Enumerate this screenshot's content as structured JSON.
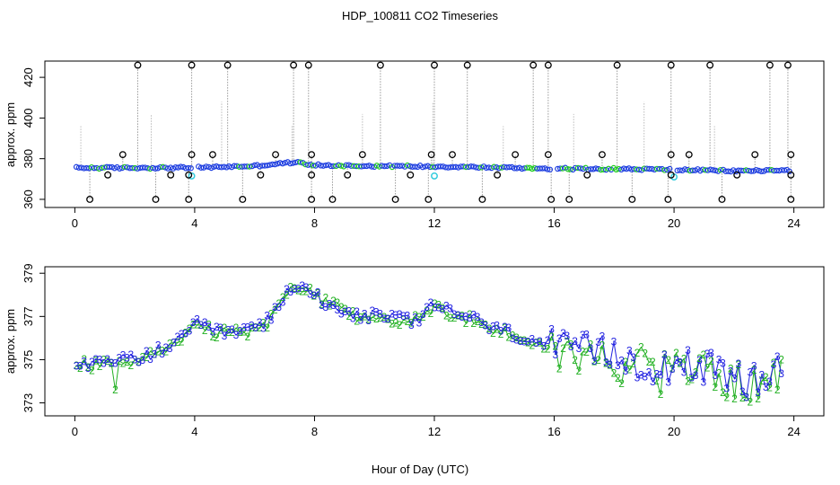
{
  "title": "HDP_100811  CO2 Timeseries",
  "xlabel": "Hour of Day (UTC)",
  "colors": {
    "outlier_circle": "#000000",
    "primary_circle": "#1f3fe0",
    "secondary_circle": "#22cc22",
    "cyan_circle": "#33ccdd",
    "spike_line": "#999999",
    "series_3": "#1f1fe0",
    "series_2": "#22b022"
  },
  "chart_data": [
    {
      "type": "scatter",
      "ylabel": "approx. ppm",
      "xlim": [
        -1.0,
        25.0
      ],
      "ylim": [
        356.0,
        428.0
      ],
      "xticks": [
        0,
        4,
        8,
        12,
        16,
        20,
        24
      ],
      "xtick_labels": [
        "0",
        "4",
        "8",
        "12",
        "16",
        "20",
        "24"
      ],
      "yticks": [
        360,
        380,
        400,
        420
      ],
      "ytick_labels": [
        "360",
        "380",
        "400",
        "420"
      ],
      "baseline": [
        [
          0,
          375.5
        ],
        [
          2,
          375.5
        ],
        [
          4,
          375.6
        ],
        [
          6,
          376.4
        ],
        [
          7.3,
          378.2
        ],
        [
          7.6,
          377.8
        ],
        [
          8,
          376.8
        ],
        [
          10,
          376.4
        ],
        [
          12,
          376.2
        ],
        [
          14,
          375.7
        ],
        [
          16,
          375.1
        ],
        [
          18,
          375.0
        ],
        [
          20,
          374.6
        ],
        [
          22,
          374.0
        ],
        [
          24,
          374.3
        ]
      ],
      "outliers_high": [
        2.1,
        3.9,
        5.1,
        7.3,
        7.8,
        10.2,
        12.0,
        13.1,
        15.3,
        15.8,
        18.1,
        19.9,
        21.2,
        23.2,
        23.8
      ],
      "outliers_high_value": 426.0,
      "outliers_mid": [
        1.6,
        3.9,
        4.6,
        6.7,
        7.9,
        9.6,
        11.9,
        12.6,
        14.7,
        15.8,
        17.6,
        19.9,
        20.5,
        22.7,
        23.9
      ],
      "outliers_mid_value": 382.0,
      "outliers_low": [
        0.5,
        2.7,
        3.8,
        5.6,
        7.9,
        8.6,
        10.7,
        11.8,
        13.6,
        15.9,
        16.5,
        18.6,
        19.8,
        21.6,
        23.9
      ],
      "outliers_low_value": 360.0,
      "outliers_below": [
        1.1,
        3.2,
        3.8,
        6.2,
        7.9,
        9.1,
        11.2,
        14.1,
        17.1,
        19.9,
        22.1,
        23.9
      ],
      "outliers_below_value": 372.0,
      "cyan_points": [
        [
          3.9,
          371.5
        ],
        [
          12.0,
          371.5
        ],
        [
          20.0,
          371.0
        ]
      ],
      "gap_hours": [
        4.0,
        16.0,
        20.0
      ]
    },
    {
      "type": "line",
      "ylabel": "approx. ppm",
      "xlim": [
        -1.0,
        25.0
      ],
      "ylim": [
        372.4,
        379.3
      ],
      "xticks": [
        0,
        4,
        8,
        12,
        16,
        20,
        24
      ],
      "xtick_labels": [
        "0",
        "4",
        "8",
        "12",
        "16",
        "20",
        "24"
      ],
      "yticks": [
        373,
        375,
        377,
        379
      ],
      "ytick_labels": [
        "373",
        "375",
        "377",
        "379"
      ],
      "baseline": [
        [
          0,
          374.9
        ],
        [
          0.6,
          374.7
        ],
        [
          1.5,
          374.9
        ],
        [
          2.5,
          375.2
        ],
        [
          3.5,
          375.8
        ],
        [
          4.0,
          376.6
        ],
        [
          4.8,
          376.2
        ],
        [
          5.6,
          376.3
        ],
        [
          6.3,
          376.5
        ],
        [
          6.8,
          377.6
        ],
        [
          7.3,
          378.3
        ],
        [
          7.8,
          378.2
        ],
        [
          8.3,
          377.7
        ],
        [
          9.2,
          377.1
        ],
        [
          10.3,
          376.9
        ],
        [
          11.5,
          376.8
        ],
        [
          12.0,
          377.5
        ],
        [
          13.0,
          377.0
        ],
        [
          14.0,
          376.4
        ],
        [
          15.0,
          376.0
        ],
        [
          15.8,
          375.6
        ],
        [
          16.3,
          375.3
        ],
        [
          17.5,
          375.2
        ],
        [
          18.5,
          375.0
        ],
        [
          19.5,
          374.6
        ],
        [
          20.5,
          374.9
        ],
        [
          21.5,
          374.2
        ],
        [
          22.5,
          373.9
        ],
        [
          23.6,
          374.3
        ]
      ],
      "series": [
        {
          "name": "3",
          "marker": "3"
        },
        {
          "name": "2",
          "marker": "2"
        }
      ]
    }
  ]
}
